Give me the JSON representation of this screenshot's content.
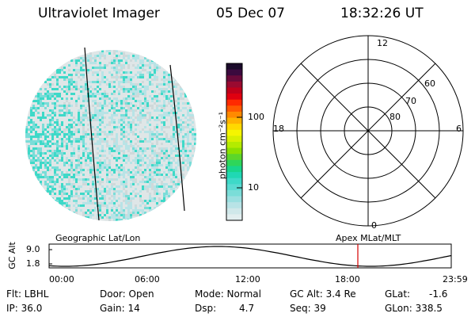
{
  "header": {
    "instrument": "Ultraviolet Imager",
    "date": "05 Dec 07",
    "time": "18:32:26 UT"
  },
  "colorbar": {
    "unit_label": "photon cm⁻²s⁻¹",
    "ticks": [
      "100",
      "10"
    ],
    "colors": [
      "#1a0a2a",
      "#3b0a3e",
      "#6a0a3a",
      "#9a0a30",
      "#c0001a",
      "#e00010",
      "#ff2a00",
      "#ff5a00",
      "#ff8a00",
      "#ffb300",
      "#ffd900",
      "#f5f500",
      "#d8f000",
      "#b4eb00",
      "#8ce000",
      "#5cd62a",
      "#2ed65a",
      "#18d68c",
      "#20d8b4",
      "#3ed9c8",
      "#5adbd2",
      "#7addd8",
      "#9adfe0",
      "#b8e3e6",
      "#d0e8ea",
      "#e2eeef"
    ]
  },
  "polar_plot": {
    "mlt_labels": {
      "top": "12",
      "bottom": "0",
      "left": "18",
      "right": "6"
    },
    "lat_labels": [
      "60",
      "70",
      "80"
    ]
  },
  "timeline": {
    "y_axis_label": "GC Alt",
    "y_max": "9.0",
    "y_min": "1.8",
    "left_title": "Geographic Lat/Lon",
    "right_title": "Apex MLat/MLT",
    "x_ticks": [
      "00:00",
      "06:00",
      "12:00",
      "18:00",
      "23:59"
    ],
    "current_time_marker": "18:32"
  },
  "status": {
    "flt": "Flt: LBHL",
    "ip": "IP: 36.0",
    "door": "Door: Open",
    "gain": "Gain: 14",
    "mode": "Mode: Normal",
    "dsp_label": "Dsp:",
    "dsp_value": "4.7",
    "gc_alt": "GC Alt: 3.4 Re",
    "seq": "Seq: 39",
    "glat_label": "GLat:",
    "glat_value": "-1.6",
    "glon": "GLon: 338.5"
  }
}
